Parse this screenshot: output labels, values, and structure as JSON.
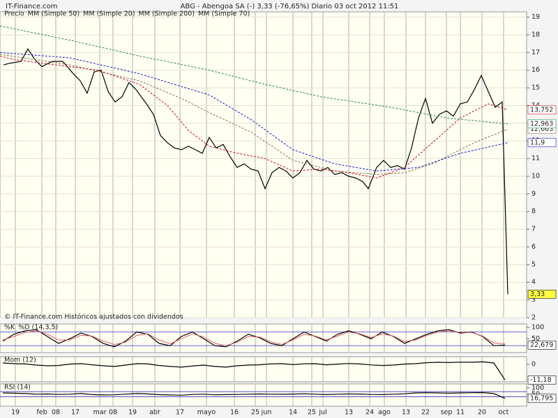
{
  "chart_data": [
    {
      "type": "line",
      "site": "IT-Finance.com",
      "title": "ABG - Abengoa SA (-)    3,33 (-76,65%)    Diario  03 oct 2012 11:51",
      "note": "© IT-Finance.com  Históricos ajustados con dividendos",
      "xlim": [
        0,
        188.75
      ],
      "xticks": [
        {
          "value": 5.5,
          "label": "19"
        },
        {
          "value": 15,
          "label": "feb"
        },
        {
          "value": 20,
          "label": "08"
        },
        {
          "value": 27,
          "label": "17"
        },
        {
          "value": 35.75,
          "label": "mar"
        },
        {
          "value": 40.5,
          "label": "08"
        },
        {
          "value": 47.5,
          "label": "19"
        },
        {
          "value": 55.5,
          "label": "abr"
        },
        {
          "value": 64.5,
          "label": "17"
        },
        {
          "value": 74,
          "label": "mayo"
        },
        {
          "value": 84,
          "label": "16"
        },
        {
          "value": 91.5,
          "label": "25"
        },
        {
          "value": 95.5,
          "label": "jun"
        },
        {
          "value": 105,
          "label": "14"
        },
        {
          "value": 111.75,
          "label": "25"
        },
        {
          "value": 115.75,
          "label": "jul"
        },
        {
          "value": 125,
          "label": "13"
        },
        {
          "value": 132.5,
          "label": "24"
        },
        {
          "value": 137.75,
          "label": "ago"
        },
        {
          "value": 145.5,
          "label": "13"
        },
        {
          "value": 152.5,
          "label": "22"
        },
        {
          "value": 160,
          "label": "sep"
        },
        {
          "value": 165,
          "label": "11"
        },
        {
          "value": 172.75,
          "label": "20"
        },
        {
          "value": 180.5,
          "label": "oct"
        }
      ],
      "ylim": [
        2,
        19.3
      ],
      "yticks": [
        2,
        3,
        4,
        5,
        6,
        7,
        8,
        9,
        10,
        11,
        12,
        13,
        14,
        15,
        16,
        17,
        18,
        19
      ],
      "grid": true,
      "series": [
        {
          "name": "Precio",
          "color": "#000000",
          "x": [
            1.25,
            3.75,
            7.5,
            10,
            12.5,
            15,
            18.75,
            22.5,
            26.25,
            28.75,
            31.25,
            33.75,
            36.25,
            38.75,
            41.25,
            43.75,
            46.25,
            48.75,
            52.5,
            55,
            57.5,
            60,
            62.5,
            65,
            67.5,
            70,
            72.5,
            75,
            77.5,
            80,
            82.5,
            85,
            87.5,
            90,
            92.5,
            95,
            97.5,
            100,
            102.5,
            105,
            107.5,
            110,
            112.5,
            115,
            117.5,
            120,
            122.5,
            125,
            127.5,
            130,
            132,
            135,
            137.5,
            140,
            142.5,
            145,
            147.5,
            150,
            152.5,
            155,
            157.5,
            160,
            162.5,
            165,
            167.5,
            170,
            172.5,
            175,
            177.5,
            180,
            182
          ],
          "values": [
            16.3,
            16.4,
            16.5,
            17.2,
            16.6,
            16.2,
            16.5,
            16.5,
            15.8,
            15.4,
            14.7,
            15.9,
            16.0,
            14.8,
            14.2,
            14.5,
            15.3,
            14.9,
            14.1,
            13.5,
            12.3,
            11.9,
            11.6,
            11.5,
            11.7,
            11.5,
            11.3,
            12.2,
            11.6,
            11.8,
            11.1,
            10.5,
            10.7,
            10.4,
            10.3,
            9.3,
            10.2,
            10.5,
            10.3,
            9.9,
            10.2,
            10.9,
            10.4,
            10.3,
            10.5,
            10.1,
            10.2,
            10.0,
            9.9,
            9.7,
            9.3,
            10.5,
            10.9,
            10.5,
            10.6,
            10.4,
            11.6,
            13.3,
            14.4,
            13.0,
            13.5,
            13.7,
            13.4,
            14.1,
            14.2,
            14.9,
            15.7,
            14.8,
            13.9,
            14.2,
            3.33
          ],
          "value_labels": [
            null,
            null,
            null,
            null,
            null,
            null,
            null,
            null,
            null,
            null,
            null,
            null,
            null,
            null,
            null,
            null,
            null,
            null,
            null,
            null,
            null,
            null,
            null,
            null,
            null,
            null,
            null,
            null,
            null,
            null,
            null,
            null,
            null,
            null,
            null,
            null,
            null,
            null,
            null,
            null,
            null,
            null,
            null,
            null,
            null,
            null,
            null,
            null,
            null,
            null,
            null,
            null,
            null,
            null,
            null,
            null,
            null,
            null,
            null,
            null,
            null,
            null,
            null,
            null,
            null,
            null,
            null,
            null,
            null,
            null,
            "3,33"
          ]
        },
        {
          "name": "MM (Simple 50)",
          "color": "#8b7355",
          "x": [
            0,
            25,
            50,
            65,
            75,
            90,
            105,
            120,
            135,
            145,
            155,
            170,
            182
          ],
          "values": [
            16.9,
            16.3,
            15.4,
            14.4,
            13.6,
            12.5,
            10.9,
            10.3,
            10.1,
            10.2,
            10.7,
            11.9,
            12.663
          ],
          "value_labels": [
            null,
            null,
            null,
            null,
            null,
            null,
            null,
            null,
            null,
            null,
            null,
            null,
            "12,663"
          ]
        },
        {
          "name": "MM (Simple 20)",
          "color": "#cc1122",
          "x": [
            0,
            5,
            25,
            35,
            50,
            60,
            67.5,
            75,
            85,
            95,
            105,
            115,
            125,
            135,
            145,
            155,
            165,
            175,
            182
          ],
          "values": [
            16.8,
            16.6,
            16.2,
            16.0,
            15.2,
            14.0,
            12.6,
            11.7,
            11.3,
            11.0,
            10.3,
            10.4,
            10.2,
            9.9,
            10.5,
            11.9,
            13.3,
            14.1,
            13.752
          ],
          "value_labels": [
            null,
            null,
            null,
            null,
            null,
            null,
            null,
            null,
            null,
            null,
            null,
            null,
            null,
            null,
            null,
            null,
            null,
            null,
            "13,752"
          ]
        },
        {
          "name": "MM (Simple 200)",
          "color": "#2e8b57",
          "x": [
            0,
            25,
            50,
            75,
            95,
            115,
            140,
            160,
            182
          ],
          "values": [
            18.5,
            17.7,
            16.8,
            16.0,
            15.2,
            14.5,
            13.9,
            13.3,
            12.963
          ],
          "value_labels": [
            null,
            null,
            null,
            null,
            null,
            null,
            null,
            null,
            "12,963"
          ]
        },
        {
          "name": "MM (Simple 70)",
          "color": "#1a1acc",
          "x": [
            0,
            25,
            50,
            75,
            90,
            105,
            120,
            135,
            150,
            165,
            182
          ],
          "values": [
            17.0,
            16.7,
            15.8,
            14.6,
            13.2,
            11.5,
            10.7,
            10.3,
            10.5,
            11.3,
            11.9
          ],
          "value_labels": [
            null,
            null,
            null,
            null,
            null,
            null,
            null,
            null,
            null,
            null,
            "11,9"
          ]
        }
      ]
    },
    {
      "type": "line",
      "ylim": [
        -10,
        115
      ],
      "yticks": [
        100,
        50
      ],
      "levels": [
        80,
        20
      ],
      "series": [
        {
          "name": "%K",
          "color": "#000000",
          "x": [
            1,
            5,
            9,
            13,
            17,
            21,
            25,
            29,
            33,
            37,
            41,
            45,
            49,
            53,
            57,
            61,
            65,
            69,
            73,
            77,
            81,
            85,
            89,
            93,
            97,
            101,
            105,
            109,
            113,
            117,
            121,
            125,
            129,
            133,
            137,
            141,
            145,
            149,
            153,
            157,
            161,
            165,
            169,
            173,
            177,
            181
          ],
          "values": [
            40,
            70,
            85,
            90,
            60,
            30,
            50,
            75,
            60,
            30,
            15,
            40,
            80,
            70,
            30,
            20,
            60,
            80,
            50,
            20,
            15,
            40,
            70,
            55,
            30,
            20,
            50,
            80,
            60,
            40,
            70,
            85,
            70,
            50,
            80,
            60,
            30,
            50,
            70,
            85,
            90,
            75,
            80,
            60,
            20,
            22.679
          ],
          "value_labels": [
            null,
            null,
            null,
            null,
            null,
            null,
            null,
            null,
            null,
            null,
            null,
            null,
            null,
            null,
            null,
            null,
            null,
            null,
            null,
            null,
            null,
            null,
            null,
            null,
            null,
            null,
            null,
            null,
            null,
            null,
            null,
            null,
            null,
            null,
            null,
            null,
            null,
            null,
            null,
            null,
            null,
            null,
            null,
            null,
            null,
            "22,679"
          ]
        },
        {
          "name": "%D (14,3,5)",
          "color": "#e06060",
          "x": [
            1,
            5,
            9,
            13,
            17,
            21,
            25,
            29,
            33,
            37,
            41,
            45,
            49,
            53,
            57,
            61,
            65,
            69,
            73,
            77,
            81,
            85,
            89,
            93,
            97,
            101,
            105,
            109,
            113,
            117,
            121,
            125,
            129,
            133,
            137,
            141,
            145,
            149,
            153,
            157,
            161,
            165,
            169,
            173,
            177,
            181
          ],
          "values": [
            45,
            60,
            78,
            85,
            70,
            45,
            45,
            65,
            62,
            40,
            25,
            35,
            65,
            72,
            45,
            28,
            50,
            72,
            58,
            30,
            20,
            35,
            60,
            58,
            38,
            25,
            45,
            70,
            62,
            45,
            62,
            80,
            72,
            55,
            72,
            62,
            38,
            45,
            65,
            80,
            85,
            78,
            78,
            62,
            32,
            28
          ]
        }
      ]
    },
    {
      "type": "line",
      "ylim": [
        -12.5,
        5.5
      ],
      "yticks": [
        0
      ],
      "series": [
        {
          "name": "Mom (12)",
          "color": "#000000",
          "x": [
            1,
            5,
            9,
            13,
            17,
            21,
            25,
            29,
            33,
            37,
            41,
            45,
            49,
            53,
            57,
            61,
            65,
            69,
            73,
            77,
            81,
            85,
            89,
            93,
            97,
            101,
            105,
            109,
            113,
            117,
            121,
            125,
            129,
            133,
            137,
            141,
            145,
            149,
            153,
            157,
            161,
            165,
            169,
            173,
            177,
            181
          ],
          "values": [
            1,
            0.5,
            0.3,
            -0.5,
            -1,
            -0.8,
            0.2,
            0.5,
            -0.3,
            -1,
            -1.5,
            -0.5,
            0.5,
            0.3,
            -0.8,
            -1.5,
            -2,
            -1.2,
            -0.5,
            -1.5,
            -2,
            -1,
            -0.5,
            -0.3,
            0.3,
            0.5,
            -0.2,
            0.4,
            0.5,
            -0.3,
            0.2,
            0.6,
            0.3,
            -0.4,
            -0.8,
            -0.5,
            0.2,
            0.5,
            1.2,
            1.5,
            1.3,
            1.6,
            1.5,
            1.8,
            1.0,
            -11.18
          ],
          "value_labels": [
            null,
            null,
            null,
            null,
            null,
            null,
            null,
            null,
            null,
            null,
            null,
            null,
            null,
            null,
            null,
            null,
            null,
            null,
            null,
            null,
            null,
            null,
            null,
            null,
            null,
            null,
            null,
            null,
            null,
            null,
            null,
            null,
            null,
            null,
            null,
            null,
            null,
            null,
            null,
            null,
            null,
            null,
            null,
            null,
            null,
            "-11,18"
          ]
        }
      ]
    },
    {
      "type": "line",
      "ylim": [
        -45,
        132
      ],
      "yticks": [
        100,
        50
      ],
      "levels": [
        70,
        30
      ],
      "series": [
        {
          "name": "RSI (14)",
          "color": "#000000",
          "x": [
            1,
            5,
            9,
            13,
            17,
            21,
            25,
            29,
            33,
            37,
            41,
            45,
            49,
            53,
            57,
            61,
            65,
            69,
            73,
            77,
            81,
            85,
            89,
            93,
            97,
            101,
            105,
            109,
            113,
            117,
            121,
            125,
            129,
            133,
            137,
            141,
            145,
            149,
            153,
            157,
            161,
            165,
            169,
            173,
            177,
            181
          ],
          "values": [
            60,
            58,
            55,
            50,
            52,
            48,
            50,
            55,
            47,
            44,
            45,
            50,
            55,
            52,
            46,
            44,
            42,
            48,
            50,
            45,
            47,
            48,
            50,
            52,
            50,
            49,
            51,
            53,
            50,
            47,
            50,
            52,
            51,
            48,
            47,
            50,
            53,
            60,
            62,
            60,
            58,
            60,
            62,
            63,
            55,
            16.795
          ],
          "value_labels": [
            null,
            null,
            null,
            null,
            null,
            null,
            null,
            null,
            null,
            null,
            null,
            null,
            null,
            null,
            null,
            null,
            null,
            null,
            null,
            null,
            null,
            null,
            null,
            null,
            null,
            null,
            null,
            null,
            null,
            null,
            null,
            null,
            null,
            null,
            null,
            null,
            null,
            null,
            null,
            null,
            null,
            null,
            null,
            null,
            null,
            "16,795"
          ]
        }
      ]
    }
  ]
}
